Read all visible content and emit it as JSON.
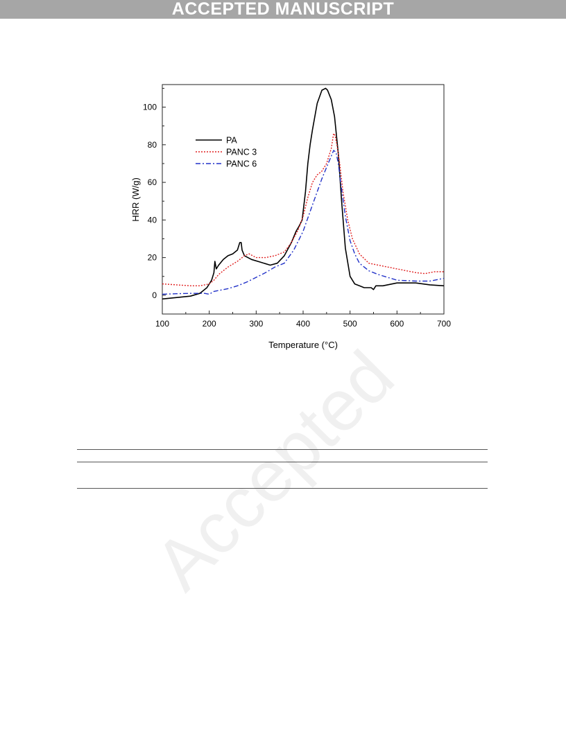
{
  "page": {
    "banner": "ACCEPTED MANUSCRIPT",
    "watermark": "Accepted"
  },
  "colors": {
    "PA": "#000000",
    "PANC 3": "#e02020",
    "PANC 6": "#2030c8",
    "banner_bg": "#a6a6a6"
  },
  "chart_data": {
    "type": "line",
    "title": "",
    "xlabel": "Temperature (°C)",
    "ylabel": "HRR (W/g)",
    "xlim": [
      100,
      700
    ],
    "ylim": [
      -10,
      112
    ],
    "xticks": [
      100,
      200,
      300,
      400,
      500,
      600,
      700
    ],
    "yticks": [
      0,
      20,
      40,
      60,
      80,
      100
    ],
    "legend_position": "upper-left",
    "grid": false,
    "series": [
      {
        "name": "PA",
        "style": "solid",
        "x": [
          100,
          120,
          140,
          160,
          180,
          195,
          205,
          210,
          212,
          215,
          220,
          230,
          240,
          250,
          260,
          265,
          268,
          270,
          275,
          290,
          310,
          330,
          345,
          360,
          375,
          385,
          392,
          398,
          405,
          410,
          415,
          420,
          430,
          440,
          448,
          452,
          460,
          467,
          475,
          482,
          490,
          500,
          510,
          520,
          530,
          545,
          550,
          555,
          570,
          600,
          640,
          670,
          700
        ],
        "y": [
          -2,
          -1.5,
          -1,
          -0.5,
          1,
          4,
          8,
          12,
          18,
          14,
          16,
          19,
          21,
          22,
          24,
          28,
          28,
          24,
          21,
          19,
          17.5,
          16,
          17,
          21,
          28,
          34,
          37,
          40,
          55,
          70,
          80,
          88,
          102,
          109,
          110,
          109,
          104,
          95,
          75,
          50,
          25,
          10,
          6,
          5,
          4,
          4,
          3,
          5,
          5,
          6.5,
          6.5,
          5.5,
          5
        ]
      },
      {
        "name": "PANC 3",
        "style": "dotted",
        "x": [
          100,
          130,
          160,
          180,
          200,
          210,
          220,
          240,
          260,
          275,
          285,
          300,
          320,
          340,
          360,
          375,
          390,
          400,
          410,
          420,
          430,
          440,
          450,
          460,
          465,
          468,
          472,
          478,
          485,
          495,
          505,
          520,
          540,
          560,
          580,
          600,
          640,
          660,
          680,
          700
        ],
        "y": [
          6,
          5.5,
          5,
          5,
          6,
          8,
          11,
          15,
          18,
          21,
          22,
          20,
          20,
          21,
          23,
          28,
          35,
          42,
          52,
          60,
          64,
          66,
          70,
          78,
          86,
          85,
          80,
          70,
          55,
          40,
          30,
          22,
          17,
          16,
          15,
          14,
          12,
          11.5,
          12.5,
          12.5
        ]
      },
      {
        "name": "PANC 6",
        "style": "dashdot",
        "x": [
          100,
          130,
          160,
          190,
          200,
          210,
          220,
          240,
          260,
          280,
          300,
          320,
          340,
          360,
          380,
          400,
          420,
          440,
          450,
          460,
          465,
          470,
          475,
          480,
          490,
          500,
          510,
          520,
          540,
          560,
          600,
          640,
          670,
          700
        ],
        "y": [
          0.5,
          0.8,
          1,
          1,
          0.5,
          2,
          2.5,
          3.5,
          5,
          7,
          9.5,
          12,
          15,
          17,
          24,
          34,
          48,
          62,
          68,
          74,
          77,
          76,
          70,
          60,
          42,
          29,
          22,
          17,
          13,
          11,
          8,
          7.5,
          7.5,
          9
        ]
      }
    ]
  }
}
